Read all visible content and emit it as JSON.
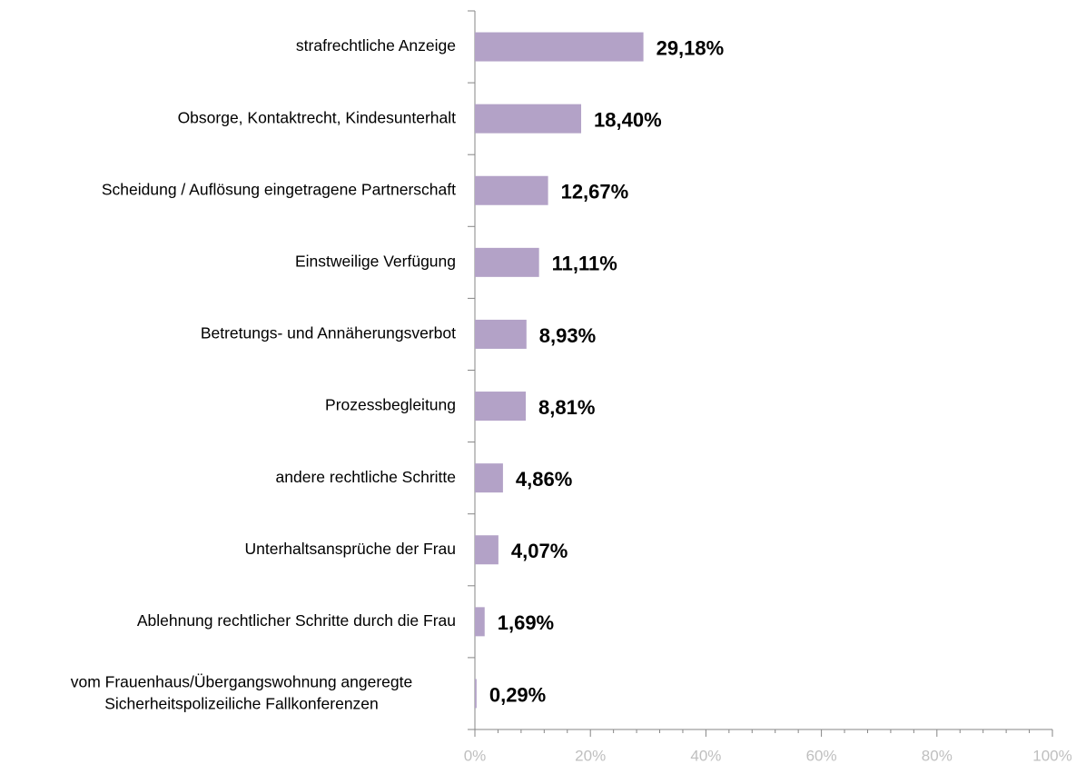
{
  "chart_data": {
    "type": "hbar",
    "categories": [
      "strafrechtliche Anzeige",
      "Obsorge, Kontaktrecht, Kindesunterhalt",
      "Scheidung / Auflösung eingetragene Partnerschaft",
      "Einstweilige Verfügung",
      "Betretungs- und Annäherungsverbot",
      "Prozessbegleitung",
      "andere rechtliche Schritte",
      "Unterhaltsansprüche der Frau",
      "Ablehnung rechtlicher Schritte durch die Frau",
      [
        "vom Frauenhaus/Übergangswohnung angeregte",
        "Sicherheitspolizeiliche Fallkonferenzen"
      ]
    ],
    "values": [
      29.18,
      18.4,
      12.67,
      11.11,
      8.93,
      8.81,
      4.86,
      4.07,
      1.69,
      0.29
    ],
    "value_labels": [
      "29,18%",
      "18,40%",
      "12,67%",
      "11,11%",
      "8,93%",
      "8,81%",
      "4,86%",
      "4,07%",
      "1,69%",
      "0,29%"
    ],
    "color": "#b3a2c7",
    "xlim": [
      0,
      100
    ],
    "xticks": [
      {
        "value": 0,
        "label": "0%"
      },
      {
        "value": 20,
        "label": "20%"
      },
      {
        "value": 40,
        "label": "40%"
      },
      {
        "value": 60,
        "label": "60%"
      },
      {
        "value": 80,
        "label": "80%"
      },
      {
        "value": 100,
        "label": "100%"
      }
    ]
  }
}
